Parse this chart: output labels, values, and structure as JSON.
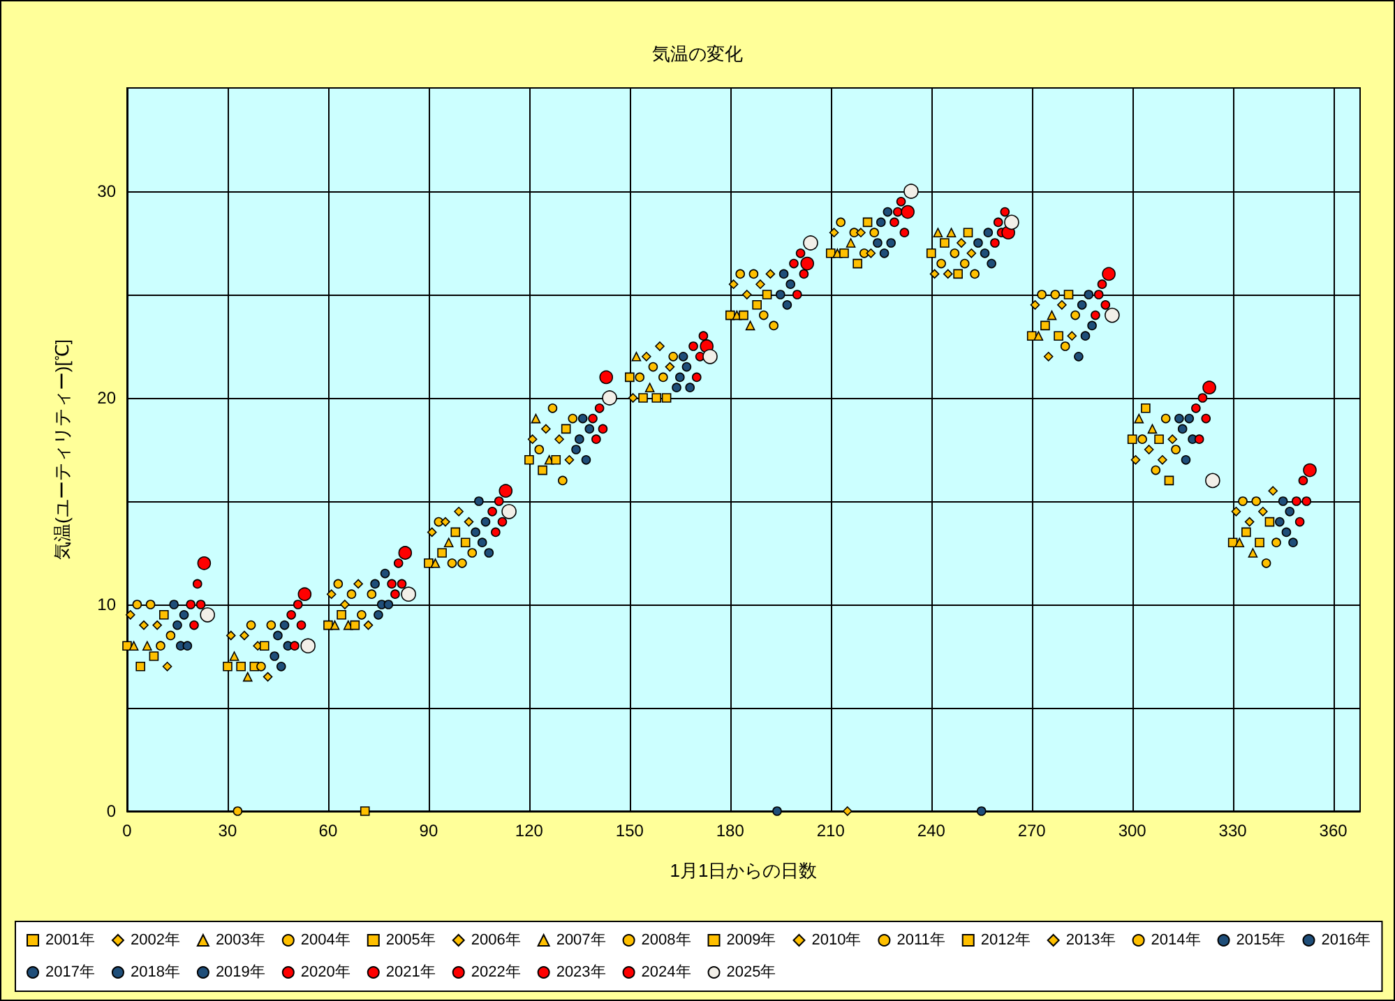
{
  "chart_data": {
    "type": "scatter",
    "title": "気温の変化",
    "xlabel": "1月1日からの日数",
    "ylabel": "気温(ユーティリティー)[℃]",
    "xlim": [
      0,
      368
    ],
    "xticks": [
      0,
      30,
      60,
      90,
      120,
      150,
      180,
      210,
      240,
      270,
      300,
      330,
      360
    ],
    "ylim": [
      0,
      35
    ],
    "yticks": [
      0,
      {
        "value": 5,
        "label": null
      },
      10,
      {
        "value": 15,
        "label": null
      },
      20,
      {
        "value": 25,
        "label": null
      },
      30
    ],
    "grid": true,
    "legend": "bottom",
    "series": [
      {
        "name": "2001年",
        "color": "#ffc000",
        "marker": "square",
        "x": [
          0,
          30,
          60,
          90,
          120,
          150,
          180,
          210,
          240,
          270,
          300,
          330
        ],
        "values": [
          8,
          7,
          9,
          12,
          17,
          21,
          24,
          27,
          27,
          23,
          18,
          13
        ]
      },
      {
        "name": "2002年",
        "color": "#ffc000",
        "marker": "diamond",
        "x": [
          1,
          31,
          61,
          91,
          121,
          151,
          181,
          211,
          241,
          271,
          301,
          331
        ],
        "values": [
          9.5,
          8.5,
          10.5,
          13.5,
          18,
          20,
          25.5,
          28,
          26,
          24.5,
          17,
          14.5
        ]
      },
      {
        "name": "2003年",
        "color": "#ffc000",
        "marker": "triangle",
        "x": [
          2,
          32,
          62,
          92,
          122,
          152,
          182,
          212,
          242,
          272,
          302,
          332
        ],
        "values": [
          8,
          7.5,
          9,
          12,
          19,
          22,
          24,
          27,
          28,
          23,
          19,
          13
        ]
      },
      {
        "name": "2004年",
        "color": "#ffc000",
        "marker": "circle",
        "x": [
          3,
          33,
          63,
          93,
          123,
          153,
          183,
          213,
          243,
          273,
          303,
          333
        ],
        "values": [
          10,
          0,
          11,
          14,
          17.5,
          21,
          26,
          28.5,
          26.5,
          25,
          18,
          15
        ]
      },
      {
        "name": "2005年",
        "color": "#ffc000",
        "marker": "square",
        "x": [
          4,
          34,
          64,
          94,
          124,
          154,
          184,
          214,
          244,
          274,
          304,
          334
        ],
        "values": [
          7,
          7,
          9.5,
          12.5,
          16.5,
          20,
          24,
          27,
          27.5,
          23.5,
          19.5,
          13.5
        ]
      },
      {
        "name": "2006年",
        "color": "#ffc000",
        "marker": "diamond",
        "x": [
          5,
          35,
          65,
          95,
          125,
          155,
          185,
          215,
          245,
          275,
          305,
          335
        ],
        "values": [
          9,
          8.5,
          10,
          14,
          18.5,
          22,
          25,
          0,
          26,
          22,
          17.5,
          14
        ]
      },
      {
        "name": "2007年",
        "color": "#ffc000",
        "marker": "triangle",
        "x": [
          6,
          36,
          66,
          96,
          126,
          156,
          186,
          216,
          246,
          276,
          306,
          336
        ],
        "values": [
          8,
          6.5,
          9,
          13,
          17,
          20.5,
          23.5,
          27.5,
          28,
          24,
          18.5,
          12.5
        ]
      },
      {
        "name": "2008年",
        "color": "#ffc000",
        "marker": "circle",
        "x": [
          7,
          37,
          67,
          97,
          127,
          157,
          187,
          217,
          247,
          277,
          307,
          337
        ],
        "values": [
          10,
          9,
          10.5,
          12,
          19.5,
          21.5,
          26,
          28,
          27,
          25,
          16.5,
          15
        ]
      },
      {
        "name": "2009年",
        "color": "#ffc000",
        "marker": "square",
        "x": [
          8,
          38,
          68,
          98,
          128,
          158,
          188,
          218,
          248,
          278,
          308,
          338
        ],
        "values": [
          7.5,
          7,
          9,
          13.5,
          17,
          20,
          24.5,
          26.5,
          26,
          23,
          18,
          13
        ]
      },
      {
        "name": "2010年",
        "color": "#ffc000",
        "marker": "diamond",
        "x": [
          9,
          39,
          69,
          99,
          129,
          159,
          189,
          219,
          249,
          279,
          309,
          339
        ],
        "values": [
          9,
          8,
          11,
          14.5,
          18,
          22.5,
          25.5,
          28,
          27.5,
          24.5,
          17,
          14.5
        ]
      },
      {
        "name": "2011年",
        "color": "#ffc000",
        "marker": "circle",
        "x": [
          10,
          40,
          70,
          100,
          130,
          160,
          190,
          220,
          250,
          280,
          310,
          340
        ],
        "values": [
          8,
          7,
          9.5,
          12,
          16,
          21,
          24,
          27,
          26.5,
          22.5,
          19,
          12
        ]
      },
      {
        "name": "2012年",
        "color": "#ffc000",
        "marker": "square",
        "x": [
          11,
          41,
          71,
          101,
          131,
          161,
          191,
          221,
          251,
          281,
          311,
          341
        ],
        "values": [
          9.5,
          8,
          0,
          13,
          18.5,
          20,
          25,
          28.5,
          28,
          25,
          16,
          14
        ]
      },
      {
        "name": "2013年",
        "color": "#ffc000",
        "marker": "diamond",
        "x": [
          12,
          42,
          72,
          102,
          132,
          162,
          192,
          222,
          252,
          282,
          312,
          342
        ],
        "values": [
          7,
          6.5,
          9,
          14,
          17,
          21.5,
          26,
          27,
          27,
          23,
          18,
          15.5
        ]
      },
      {
        "name": "2014年",
        "color": "#ffc000",
        "marker": "circle",
        "x": [
          13,
          43,
          73,
          103,
          133,
          163,
          193,
          223,
          253,
          283,
          313,
          343
        ],
        "values": [
          8.5,
          9,
          10.5,
          12.5,
          19,
          22,
          23.5,
          28,
          26,
          24,
          17.5,
          13
        ]
      },
      {
        "name": "2015年",
        "color": "#1f4e79",
        "marker": "circle",
        "x": [
          14,
          44,
          74,
          104,
          134,
          164,
          194,
          224,
          254,
          284,
          314,
          344
        ],
        "values": [
          10,
          7.5,
          11,
          13.5,
          17.5,
          20.5,
          0,
          27.5,
          27.5,
          22,
          19,
          14
        ]
      },
      {
        "name": "2016年",
        "color": "#1f4e79",
        "marker": "circle",
        "x": [
          15,
          45,
          75,
          105,
          135,
          165,
          195,
          225,
          255,
          285,
          315,
          345
        ],
        "values": [
          9,
          8.5,
          9.5,
          15,
          18,
          21,
          25,
          28.5,
          0,
          24.5,
          18.5,
          15
        ]
      },
      {
        "name": "2017年",
        "color": "#1f4e79",
        "marker": "circle",
        "x": [
          16,
          46,
          76,
          106,
          136,
          166,
          196,
          226,
          256,
          286,
          316,
          346
        ],
        "values": [
          8,
          7,
          10,
          13,
          19,
          22,
          26,
          27,
          27,
          23,
          17,
          13.5
        ]
      },
      {
        "name": "2018年",
        "color": "#1f4e79",
        "marker": "circle",
        "x": [
          17,
          47,
          77,
          107,
          137,
          167,
          197,
          227,
          257,
          287,
          317,
          347
        ],
        "values": [
          9.5,
          9,
          11.5,
          14,
          17,
          21.5,
          24.5,
          29,
          28,
          25,
          19,
          14.5
        ]
      },
      {
        "name": "2019年",
        "color": "#1f4e79",
        "marker": "circle",
        "x": [
          18,
          48,
          78,
          108,
          138,
          168,
          198,
          228,
          258,
          288,
          318,
          348
        ],
        "values": [
          8,
          8,
          10,
          12.5,
          18.5,
          20.5,
          25.5,
          27.5,
          26.5,
          23.5,
          18,
          13
        ]
      },
      {
        "name": "2020年",
        "color": "#ff0000",
        "marker": "circle",
        "x": [
          19,
          49,
          79,
          109,
          139,
          169,
          199,
          229,
          259,
          289,
          319,
          349
        ],
        "values": [
          10,
          9.5,
          11,
          14.5,
          19,
          22.5,
          26.5,
          28.5,
          27.5,
          24,
          19.5,
          15
        ]
      },
      {
        "name": "2021年",
        "color": "#ff0000",
        "marker": "circle",
        "x": [
          20,
          50,
          80,
          110,
          140,
          170,
          200,
          230,
          260,
          290,
          320,
          350
        ],
        "values": [
          9,
          8,
          10.5,
          13.5,
          18,
          21,
          25,
          29,
          28.5,
          25,
          18,
          14
        ]
      },
      {
        "name": "2022年",
        "color": "#ff0000",
        "marker": "circle",
        "x": [
          21,
          51,
          81,
          111,
          141,
          171,
          201,
          231,
          261,
          291,
          321,
          351
        ],
        "values": [
          11,
          10,
          12,
          15,
          19.5,
          22,
          27,
          29.5,
          28,
          25.5,
          20,
          16
        ]
      },
      {
        "name": "2023年",
        "color": "#ff0000",
        "marker": "circle",
        "x": [
          22,
          52,
          82,
          112,
          142,
          172,
          202,
          232,
          262,
          292,
          322,
          352
        ],
        "values": [
          10,
          9,
          11,
          14,
          18.5,
          23,
          26,
          28,
          29,
          24.5,
          19,
          15
        ]
      },
      {
        "name": "2024年",
        "color": "#ff0000",
        "marker": "circle",
        "x": [
          23,
          53,
          83,
          113,
          143,
          173,
          203,
          233,
          263,
          293,
          323,
          353
        ],
        "values": [
          12,
          10.5,
          12.5,
          15.5,
          21,
          22.5,
          26.5,
          29,
          28,
          26,
          20.5,
          16.5
        ]
      },
      {
        "name": "2025年",
        "color": "#f2efe8",
        "marker": "circle",
        "x": [
          24,
          54,
          84,
          114,
          144,
          174,
          204,
          234,
          264,
          294,
          324
        ],
        "values": [
          9.5,
          8,
          10.5,
          14.5,
          20,
          22,
          27.5,
          30,
          28.5,
          24,
          16
        ]
      }
    ]
  }
}
